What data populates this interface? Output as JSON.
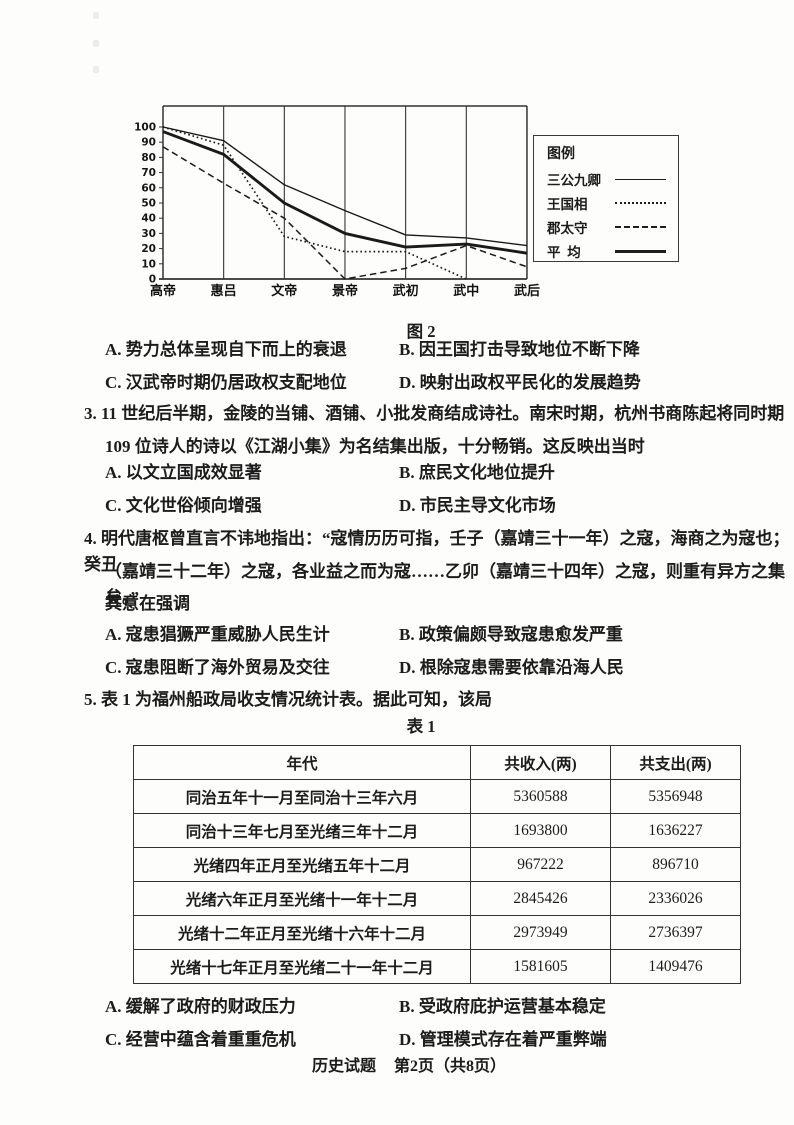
{
  "figure": {
    "caption": "图 2",
    "legend": {
      "title": "图例",
      "entries": [
        {
          "label": "三公九卿",
          "style": "solid-thin"
        },
        {
          "label": "王国相",
          "style": "dotted"
        },
        {
          "label": "郡太守",
          "style": "dashed"
        },
        {
          "label": "平  均",
          "style": "solid-thick"
        }
      ]
    }
  },
  "chart_data": {
    "type": "line",
    "title": "图 2",
    "categories": [
      "高帝",
      "惠吕",
      "文帝",
      "景帝",
      "武初",
      "武中",
      "武后"
    ],
    "series": [
      {
        "name": "三公九卿",
        "style": "solid-thin",
        "values": [
          100,
          91,
          62,
          45,
          29,
          27,
          22
        ]
      },
      {
        "name": "王国相",
        "style": "dotted",
        "values": [
          100,
          88,
          28,
          18,
          18,
          0,
          null
        ]
      },
      {
        "name": "郡太守",
        "style": "dashed",
        "values": [
          87,
          63,
          40,
          0,
          7,
          22,
          8
        ]
      },
      {
        "name": "平均",
        "style": "solid-thick",
        "values": [
          97,
          82,
          50,
          30,
          21,
          23,
          17
        ]
      }
    ],
    "ylim": [
      0,
      100
    ],
    "y_ticks": [
      0,
      10,
      20,
      30,
      40,
      50,
      60,
      70,
      80,
      90,
      100
    ],
    "xlabel": "",
    "ylabel": "",
    "grid": "vertical-only",
    "legend_position": "right",
    "line_color": "#1a1a1a"
  },
  "questions": [
    {
      "id": "q2",
      "stem_lines": [],
      "options": [
        "A. 势力总体呈现自下而上的衰退",
        "B. 因王国打击导致地位不断下降",
        "C. 汉武帝时期仍居政权支配地位",
        "D. 映射出政权平民化的发展趋势"
      ]
    },
    {
      "id": "q3",
      "stem_lines": [
        "3. 11 世纪后半期，金陵的当铺、酒铺、小批发商结成诗社。南宋时期，杭州书商陈起将同时期",
        "109 位诗人的诗以《江湖小集》为名结集出版，十分畅销。这反映出当时"
      ],
      "options": [
        "A. 以文立国成效显著",
        "B. 庶民文化地位提升",
        "C. 文化世俗倾向增强",
        "D. 市民主导文化市场"
      ]
    },
    {
      "id": "q4",
      "stem_lines": [
        "4. 明代唐枢曾直言不讳地指出：“寇情历历可指，壬子（嘉靖三十一年）之寇，海商之为寇也；癸丑",
        "（嘉靖三十二年）之寇，各业益之而为寇……乙卯（嘉靖三十四年）之寇，则重有异方之集矣。”",
        "其意在强调"
      ],
      "options": [
        "A. 寇患猖獗严重威胁人民生计",
        "B. 政策偏颇导致寇患愈发严重",
        "C. 寇患阻断了海外贸易及交往",
        "D. 根除寇患需要依靠沿海人民"
      ]
    },
    {
      "id": "q5",
      "stem_lines": [
        "5. 表 1 为福州船政局收支情况统计表。据此可知，该局"
      ],
      "options": [
        "A. 缓解了政府的财政压力",
        "B. 受政府庇护运营基本稳定",
        "C. 经营中蕴含着重重危机",
        "D. 管理模式存在着严重弊端"
      ]
    }
  ],
  "table": {
    "caption": "表 1",
    "headers": [
      "年代",
      "共收入(两)",
      "共支出(两)"
    ],
    "rows": [
      [
        "同治五年十一月至同治十三年六月",
        "5360588",
        "5356948"
      ],
      [
        "同治十三年七月至光绪三年十二月",
        "1693800",
        "1636227"
      ],
      [
        "光绪四年正月至光绪五年十二月",
        "967222",
        "896710"
      ],
      [
        "光绪六年正月至光绪十一年十二月",
        "2845426",
        "2336026"
      ],
      [
        "光绪十二年正月至光绪十六年十二月",
        "2973949",
        "2736397"
      ],
      [
        "光绪十七年正月至光绪二十一年十二月",
        "1581605",
        "1409476"
      ]
    ]
  },
  "footer": {
    "doc_title": "历史试题",
    "page_info": "第2页（共8页）"
  }
}
